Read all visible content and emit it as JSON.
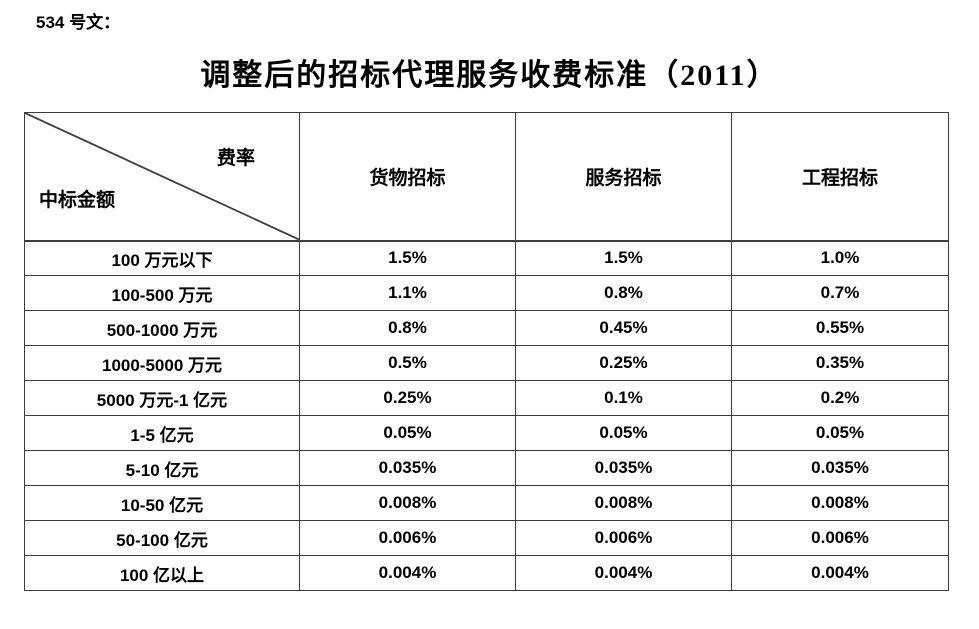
{
  "doc_label": "534 号文：",
  "title": "调整后的招标代理服务收费标准（2011）",
  "table": {
    "corner": {
      "top_right": "费率",
      "bottom_left": "中标金额"
    },
    "columns": [
      "货物招标",
      "服务招标",
      "工程招标"
    ],
    "rows": [
      {
        "label": "100 万元以下",
        "values": [
          "1.5%",
          "1.5%",
          "1.0%"
        ]
      },
      {
        "label": "100-500 万元",
        "values": [
          "1.1%",
          "0.8%",
          "0.7%"
        ]
      },
      {
        "label": "500-1000 万元",
        "values": [
          "0.8%",
          "0.45%",
          "0.55%"
        ]
      },
      {
        "label": "1000-5000 万元",
        "values": [
          "0.5%",
          "0.25%",
          "0.35%"
        ]
      },
      {
        "label": "5000 万元-1 亿元",
        "values": [
          "0.25%",
          "0.1%",
          "0.2%"
        ]
      },
      {
        "label": "1-5 亿元",
        "values": [
          "0.05%",
          "0.05%",
          "0.05%"
        ]
      },
      {
        "label": "5-10 亿元",
        "values": [
          "0.035%",
          "0.035%",
          "0.035%"
        ]
      },
      {
        "label": "10-50 亿元",
        "values": [
          "0.008%",
          "0.008%",
          "0.008%"
        ]
      },
      {
        "label": "50-100 亿元",
        "values": [
          "0.006%",
          "0.006%",
          "0.006%"
        ]
      },
      {
        "label": "100 亿以上",
        "values": [
          "0.004%",
          "0.004%",
          "0.004%"
        ]
      }
    ]
  },
  "colors": {
    "border": "#3d3d3d",
    "text": "#000000",
    "background": "#ffffff"
  }
}
